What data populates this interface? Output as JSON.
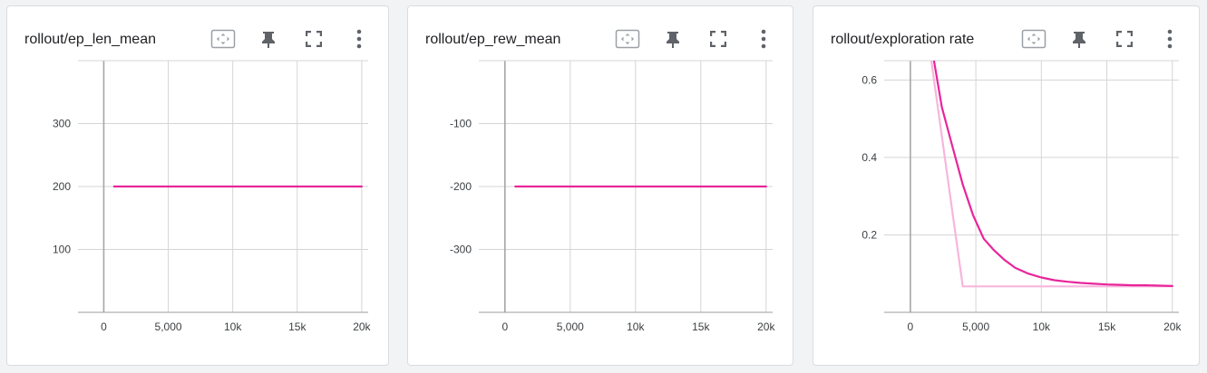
{
  "colors": {
    "series_main": "#e8259a",
    "series_light": "#f7b6dc",
    "zero_axis": "#a6a6a6",
    "grid": "#d5d5d5",
    "icon": "#5f6368"
  },
  "toolbar_icons": [
    "fit-domain-icon",
    "pin-icon",
    "fullscreen-icon",
    "more-vert-icon"
  ],
  "chart_data": [
    {
      "type": "line",
      "title": "rollout/ep_len_mean",
      "xlim": [
        -2000,
        20500
      ],
      "ylim": [
        0,
        400
      ],
      "xticks": [
        0,
        5000,
        10000,
        15000,
        20000
      ],
      "xtick_labels": [
        "0",
        "5,000",
        "10k",
        "15k",
        "20k"
      ],
      "yticks": [
        100,
        200,
        300
      ],
      "ytick_labels": [
        "100",
        "200",
        "300"
      ],
      "series": [
        {
          "color": "#e8259a",
          "x": [
            800,
            20000
          ],
          "y": [
            200,
            200
          ]
        }
      ]
    },
    {
      "type": "line",
      "title": "rollout/ep_rew_mean",
      "xlim": [
        -2000,
        20500
      ],
      "ylim": [
        -400,
        0
      ],
      "xticks": [
        0,
        5000,
        10000,
        15000,
        20000
      ],
      "xtick_labels": [
        "0",
        "5,000",
        "10k",
        "15k",
        "20k"
      ],
      "yticks": [
        -300,
        -200,
        -100
      ],
      "ytick_labels": [
        "-300",
        "-200",
        "-100"
      ],
      "series": [
        {
          "color": "#e8259a",
          "x": [
            800,
            20000
          ],
          "y": [
            -200,
            -200
          ]
        }
      ]
    },
    {
      "type": "line",
      "title": "rollout/exploration rate",
      "xlim": [
        -2000,
        20500
      ],
      "ylim": [
        0,
        0.65
      ],
      "xticks": [
        0,
        5000,
        10000,
        15000,
        20000
      ],
      "xtick_labels": [
        "0",
        "5,000",
        "10k",
        "15k",
        "20k"
      ],
      "yticks": [
        0.2,
        0.4,
        0.6
      ],
      "ytick_labels": [
        "0.2",
        "0.4",
        "0.6"
      ],
      "series": [
        {
          "color": "#f7b6dc",
          "x": [
            1600,
            4000,
            20000
          ],
          "y": [
            0.65,
            0.067,
            0.067
          ]
        },
        {
          "color": "#e8259a",
          "x": [
            1800,
            2400,
            3200,
            4000,
            4800,
            5600,
            6400,
            7200,
            8000,
            9000,
            10000,
            11000,
            12000,
            13000,
            14000,
            15000,
            16000,
            17000,
            18000,
            19000,
            20000
          ],
          "y": [
            0.65,
            0.53,
            0.43,
            0.33,
            0.25,
            0.19,
            0.16,
            0.135,
            0.115,
            0.1,
            0.09,
            0.083,
            0.079,
            0.076,
            0.074,
            0.072,
            0.071,
            0.07,
            0.07,
            0.069,
            0.068
          ]
        }
      ]
    }
  ]
}
